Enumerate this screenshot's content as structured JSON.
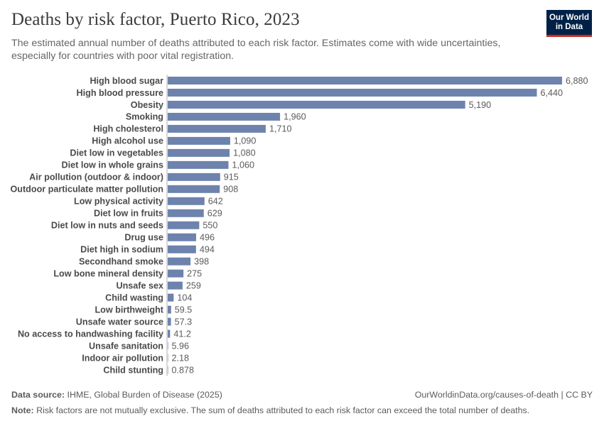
{
  "header": {
    "title": "Deaths by risk factor, Puerto Rico, 2023",
    "subtitle": "The estimated annual number of deaths attributed to each risk factor. Estimates come with wide uncertainties, especially for countries with poor vital registration."
  },
  "logo": {
    "line1": "Our World",
    "line2": "in Data"
  },
  "colors": {
    "bar": "#6d83ad",
    "axis": "#b0b0b0",
    "logo_bg": "#002147",
    "logo_accent": "#ce261e"
  },
  "chart_data": {
    "type": "bar",
    "orientation": "horizontal",
    "categories": [
      "High blood sugar",
      "High blood pressure",
      "Obesity",
      "Smoking",
      "High cholesterol",
      "High alcohol use",
      "Diet low in vegetables",
      "Diet low in whole grains",
      "Air pollution (outdoor & indoor)",
      "Outdoor particulate matter pollution",
      "Low physical activity",
      "Diet low in fruits",
      "Diet low in nuts and seeds",
      "Drug use",
      "Diet high in sodium",
      "Secondhand smoke",
      "Low bone mineral density",
      "Unsafe sex",
      "Child wasting",
      "Low birthweight",
      "Unsafe water source",
      "No access to handwashing facility",
      "Unsafe sanitation",
      "Indoor air pollution",
      "Child stunting"
    ],
    "values": [
      6880,
      6440,
      5190,
      1960,
      1710,
      1090,
      1080,
      1060,
      915,
      908,
      642,
      629,
      550,
      496,
      494,
      398,
      275,
      259,
      104,
      59.5,
      57.3,
      41.2,
      5.96,
      2.18,
      0.878
    ],
    "labels": [
      "6,880",
      "6,440",
      "5,190",
      "1,960",
      "1,710",
      "1,090",
      "1,080",
      "1,060",
      "915",
      "908",
      "642",
      "629",
      "550",
      "496",
      "494",
      "398",
      "275",
      "259",
      "104",
      "59.5",
      "57.3",
      "41.2",
      "5.96",
      "2.18",
      "0.878"
    ],
    "title": "Deaths by risk factor, Puerto Rico, 2023",
    "xlabel": "",
    "ylabel": "",
    "xlim": [
      0,
      6880
    ]
  },
  "footer": {
    "source_label": "Data source:",
    "source_text": "IHME, Global Burden of Disease (2025)",
    "url": "OurWorldinData.org/causes-of-death | CC BY",
    "note_label": "Note:",
    "note_text": "Risk factors are not mutually exclusive. The sum of deaths attributed to each risk factor can exceed the total number of deaths."
  }
}
